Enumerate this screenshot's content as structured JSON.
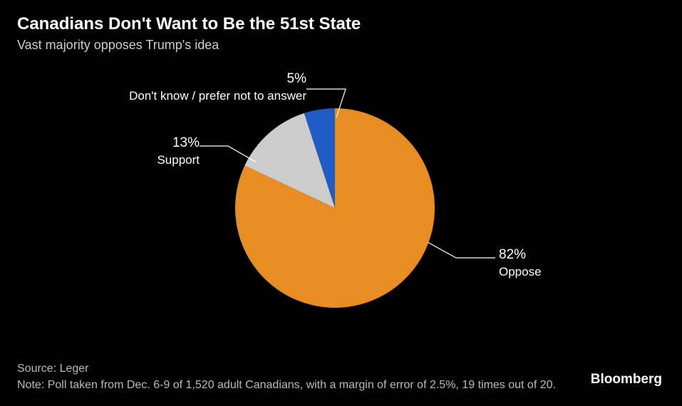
{
  "header": {
    "title": "Canadians Don't Want to Be the 51st State",
    "subtitle": "Vast majority opposes Trump's idea"
  },
  "chart": {
    "type": "pie",
    "background_color": "#000000",
    "text_color": "#ffffff",
    "leader_color": "#ffffff",
    "slices": [
      {
        "label": "Oppose",
        "value": 82,
        "pct_text": "82%",
        "color": "#e78d22"
      },
      {
        "label": "Support",
        "value": 13,
        "pct_text": "13%",
        "color": "#cccccc"
      },
      {
        "label": "Don't know / prefer not to answer",
        "value": 5,
        "pct_text": "5%",
        "color": "#1f5cc7"
      }
    ],
    "title_fontsize": 24,
    "subtitle_fontsize": 18,
    "label_fontsize": 17,
    "pct_fontsize": 19
  },
  "footer": {
    "source_label": "Source: Leger",
    "note": "Note: Poll taken from Dec. 6-9 of 1,520 adult Canadians, with a margin of error of 2.5%, 19 times out of 20."
  },
  "brand": "Bloomberg"
}
